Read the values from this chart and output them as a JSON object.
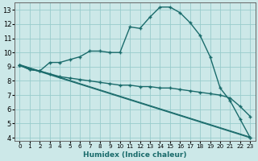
{
  "xlabel": "Humidex (Indice chaleur)",
  "bg_color": "#cce8e8",
  "grid_color": "#99cccc",
  "line_color": "#1a6b6b",
  "xlim_min": -0.5,
  "xlim_max": 23.5,
  "ylim_min": 3.8,
  "ylim_max": 13.5,
  "x_ticks": [
    0,
    1,
    2,
    3,
    4,
    5,
    6,
    7,
    8,
    9,
    10,
    11,
    12,
    13,
    14,
    15,
    16,
    17,
    18,
    19,
    20,
    21,
    22,
    23
  ],
  "y_ticks": [
    4,
    5,
    6,
    7,
    8,
    9,
    10,
    11,
    12,
    13
  ],
  "curve1_x": [
    0,
    1,
    2,
    3,
    4,
    5,
    6,
    7,
    8,
    9,
    10,
    11,
    12,
    13,
    14,
    15,
    16,
    17,
    18,
    19,
    20,
    21,
    22,
    23
  ],
  "curve1_y": [
    9.1,
    8.8,
    8.7,
    9.3,
    9.3,
    9.5,
    9.7,
    10.1,
    10.1,
    10.0,
    10.0,
    11.8,
    11.7,
    12.5,
    13.2,
    13.2,
    12.8,
    12.1,
    11.2,
    9.7,
    7.5,
    6.6,
    5.3,
    4.0
  ],
  "curve2_x": [
    0,
    1,
    2,
    3,
    4,
    5,
    6,
    7,
    8,
    9,
    10,
    11,
    12,
    13,
    14,
    15,
    16,
    17,
    18,
    19,
    20,
    21,
    22,
    23
  ],
  "curve2_y": [
    9.1,
    8.8,
    8.7,
    8.5,
    8.3,
    8.2,
    8.1,
    8.0,
    7.9,
    7.8,
    7.7,
    7.7,
    7.6,
    7.6,
    7.5,
    7.5,
    7.4,
    7.3,
    7.2,
    7.1,
    7.0,
    6.8,
    6.2,
    5.5
  ],
  "curve3_x": [
    0,
    23
  ],
  "curve3_y": [
    9.1,
    4.0
  ],
  "curve4_x": [
    0,
    23
  ],
  "curve4_y": [
    9.15,
    4.05
  ]
}
